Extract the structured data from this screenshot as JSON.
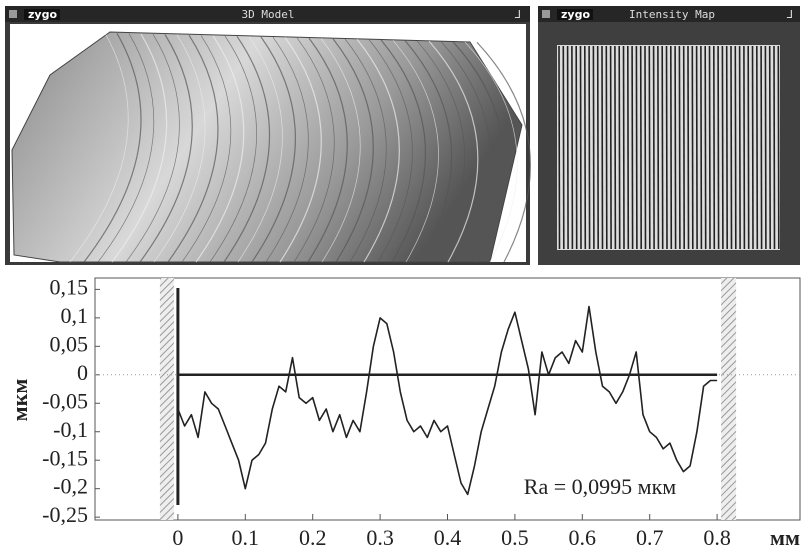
{
  "panels": [
    {
      "logo": "zygo",
      "title": "3D Model"
    },
    {
      "logo": "zygo",
      "title": "Intensity Map"
    }
  ],
  "chart_data": {
    "type": "line",
    "x": [
      0,
      0.01,
      0.02,
      0.03,
      0.04,
      0.05,
      0.06,
      0.07,
      0.08,
      0.09,
      0.1,
      0.11,
      0.12,
      0.13,
      0.14,
      0.15,
      0.16,
      0.17,
      0.18,
      0.19,
      0.2,
      0.21,
      0.22,
      0.23,
      0.24,
      0.25,
      0.26,
      0.27,
      0.28,
      0.29,
      0.3,
      0.31,
      0.32,
      0.33,
      0.34,
      0.35,
      0.36,
      0.37,
      0.38,
      0.39,
      0.4,
      0.41,
      0.42,
      0.43,
      0.44,
      0.45,
      0.46,
      0.47,
      0.48,
      0.49,
      0.5,
      0.51,
      0.52,
      0.53,
      0.54,
      0.55,
      0.56,
      0.57,
      0.58,
      0.59,
      0.6,
      0.61,
      0.62,
      0.63,
      0.64,
      0.65,
      0.66,
      0.67,
      0.68,
      0.69,
      0.7,
      0.71,
      0.72,
      0.73,
      0.74,
      0.75,
      0.76,
      0.77,
      0.78,
      0.79,
      0.8
    ],
    "values": [
      -0.06,
      -0.09,
      -0.07,
      -0.11,
      -0.03,
      -0.05,
      -0.06,
      -0.09,
      -0.12,
      -0.15,
      -0.2,
      -0.15,
      -0.14,
      -0.12,
      -0.06,
      -0.02,
      -0.03,
      0.03,
      -0.04,
      -0.05,
      -0.04,
      -0.08,
      -0.06,
      -0.1,
      -0.07,
      -0.11,
      -0.08,
      -0.1,
      -0.03,
      0.05,
      0.1,
      0.09,
      0.04,
      -0.03,
      -0.08,
      -0.1,
      -0.09,
      -0.11,
      -0.08,
      -0.1,
      -0.09,
      -0.14,
      -0.19,
      -0.21,
      -0.16,
      -0.1,
      -0.06,
      -0.02,
      0.04,
      0.08,
      0.11,
      0.06,
      0.01,
      -0.07,
      0.04,
      0,
      0.03,
      0.04,
      0.02,
      0.06,
      0.04,
      0.12,
      0.04,
      -0.02,
      -0.03,
      -0.05,
      -0.03,
      0,
      0.04,
      -0.07,
      -0.1,
      -0.11,
      -0.13,
      -0.12,
      -0.15,
      -0.17,
      -0.16,
      -0.1,
      -0.02,
      -0.01,
      -0.01
    ],
    "color": "#222222",
    "xlabel": "мм",
    "ylabel": "мкм",
    "annotation": "Ra = 0,0995 мкм",
    "xlim": [
      -0.123,
      0.923
    ],
    "ylim": [
      -0.255,
      0.17
    ],
    "xticks": [
      0,
      0.1,
      0.2,
      0.3,
      0.4,
      0.5,
      0.6,
      0.7,
      0.8
    ],
    "yticks": [
      {
        "value": 0.15,
        "label": "0,15"
      },
      {
        "value": 0.1,
        "label": "0,1"
      },
      {
        "value": 0.05,
        "label": "0,05"
      },
      0,
      {
        "value": -0.05,
        "label": "-0,05"
      },
      {
        "value": -0.1,
        "label": "-0,1"
      },
      {
        "value": -0.15,
        "label": "-0,15"
      },
      {
        "value": -0.2,
        "label": "-0,2"
      },
      {
        "value": -0.25,
        "label": "-0,25"
      }
    ],
    "grid": false
  }
}
